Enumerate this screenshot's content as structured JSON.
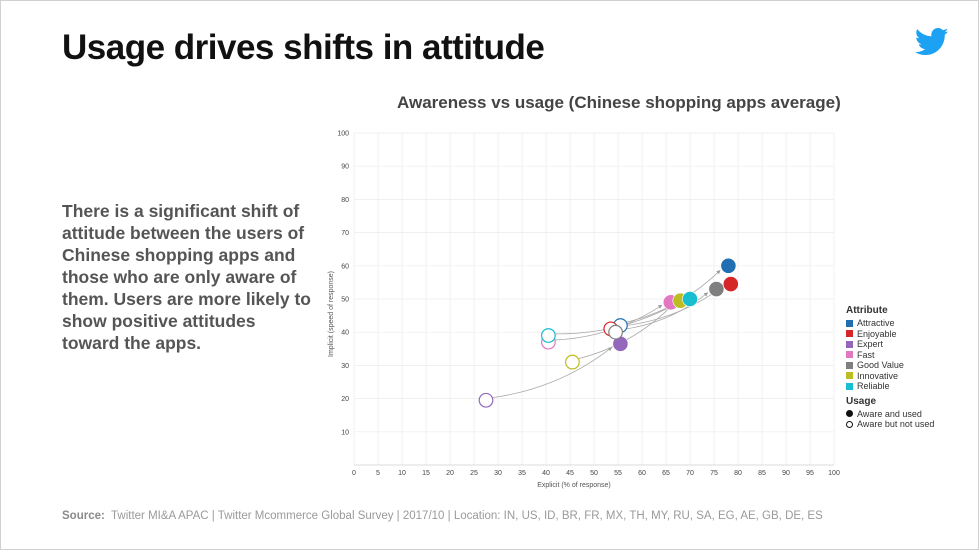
{
  "slide": {
    "title": "Usage drives shifts in attitude",
    "body": "There is a significant shift of attitude between the users of Chinese shopping apps and those who are only aware of them. Users are more likely to show positive attitudes toward the apps.",
    "source_label": "Source:",
    "source_text": "Twitter MI&A APAC | Twitter Mcommerce Global Survey |  2017/10 | Location: IN, US, ID, BR, FR, MX, TH, MY, RU, SA, EG, AE, GB, DE, ES",
    "logo_icon": "twitter-bird-icon",
    "logo_color": "#1da1f2"
  },
  "chart_data": {
    "type": "scatter",
    "title": "Awareness vs usage (Chinese shopping apps average)",
    "xlabel": "Explicit (% of response)",
    "ylabel": "Implicit (speed of response)",
    "xlim": [
      0,
      100
    ],
    "ylim": [
      0,
      100
    ],
    "xticks": [
      0,
      5,
      10,
      15,
      20,
      25,
      30,
      35,
      40,
      45,
      50,
      55,
      60,
      65,
      70,
      75,
      80,
      85,
      90,
      95,
      100
    ],
    "yticks": [
      10,
      20,
      30,
      40,
      50,
      60,
      70,
      80,
      90,
      100
    ],
    "grid": true,
    "legend_position": "right",
    "legend_attribute_title": "Attribute",
    "legend_usage_title": "Usage",
    "usage_labels": {
      "used": "Aware and used",
      "not_used": "Aware but not used"
    },
    "series": [
      {
        "name": "Attractive",
        "color": "#1f6fb2",
        "not_used": [
          55.5,
          42.0
        ],
        "used": [
          78.0,
          60.0
        ]
      },
      {
        "name": "Enjoyable",
        "color": "#d62728",
        "not_used": [
          53.5,
          41.0
        ],
        "used": [
          78.5,
          54.5
        ]
      },
      {
        "name": "Expert",
        "color": "#9467bd",
        "not_used": [
          27.5,
          19.5
        ],
        "used": [
          55.5,
          36.5
        ]
      },
      {
        "name": "Fast",
        "color": "#e377c2",
        "not_used": [
          40.5,
          37.0
        ],
        "used": [
          66.0,
          49.0
        ]
      },
      {
        "name": "Good Value",
        "color": "#7f7f7f",
        "not_used": [
          54.5,
          40.0
        ],
        "used": [
          75.5,
          53.0
        ]
      },
      {
        "name": "Innovative",
        "color": "#bcbd22",
        "not_used": [
          45.5,
          31.0
        ],
        "used": [
          68.0,
          49.5
        ]
      },
      {
        "name": "Reliable",
        "color": "#17becf",
        "not_used": [
          40.5,
          39.0
        ],
        "used": [
          70.0,
          50.0
        ]
      }
    ]
  }
}
